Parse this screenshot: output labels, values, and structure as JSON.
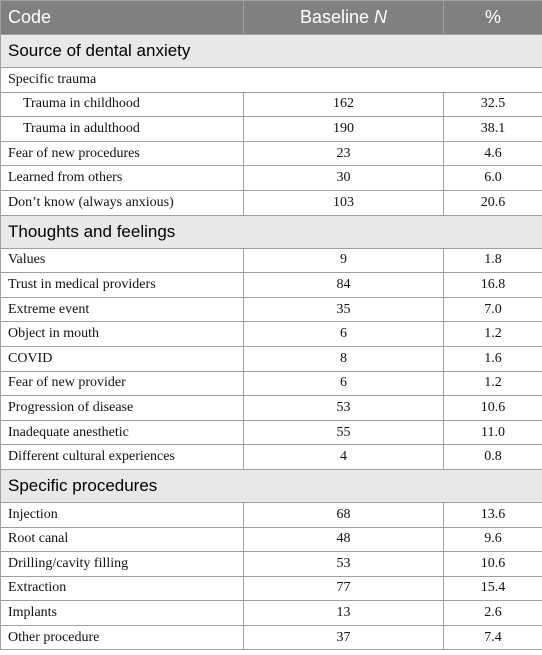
{
  "table": {
    "header": [
      "Code",
      {
        "text": "Baseline",
        "italic": "N"
      },
      "%"
    ],
    "sections": [
      {
        "title": "Source of dental anxiety",
        "rows": [
          {
            "cells": [
              "Specific trauma"
            ]
          },
          {
            "cells": [
              "Trauma in childhood",
              "162",
              "32.5"
            ],
            "indent": true
          },
          {
            "cells": [
              "Trauma in adulthood",
              "190",
              "38.1"
            ],
            "indent": true
          },
          {
            "cells": [
              "Fear of new procedures",
              "23",
              "4.6"
            ]
          },
          {
            "cells": [
              "Learned from others",
              "30",
              "6.0"
            ]
          },
          {
            "cells": [
              "Don’t know (always anxious)",
              "103",
              "20.6"
            ]
          }
        ]
      },
      {
        "title": "Thoughts and feelings",
        "rows": [
          {
            "cells": [
              "Values",
              "9",
              "1.8"
            ]
          },
          {
            "cells": [
              "Trust in medical providers",
              "84",
              "16.8"
            ]
          },
          {
            "cells": [
              "Extreme event",
              "35",
              "7.0"
            ]
          },
          {
            "cells": [
              "Object in mouth",
              "6",
              "1.2"
            ]
          },
          {
            "cells": [
              "COVID",
              "8",
              "1.6"
            ]
          },
          {
            "cells": [
              "Fear of new provider",
              "6",
              "1.2"
            ]
          },
          {
            "cells": [
              "Progression of disease",
              "53",
              "10.6"
            ]
          },
          {
            "cells": [
              "Inadequate anesthetic",
              "55",
              "11.0"
            ]
          },
          {
            "cells": [
              "Different cultural experiences",
              "4",
              "0.8"
            ]
          }
        ]
      },
      {
        "title": "Specific procedures",
        "rows": [
          {
            "cells": [
              "Injection",
              "68",
              "13.6"
            ]
          },
          {
            "cells": [
              "Root canal",
              "48",
              "9.6"
            ]
          },
          {
            "cells": [
              "Drilling/cavity filling",
              "53",
              "10.6"
            ]
          },
          {
            "cells": [
              "Extraction",
              "77",
              "15.4"
            ]
          },
          {
            "cells": [
              "Implants",
              "13",
              "2.6"
            ]
          },
          {
            "cells": [
              "Other procedure",
              "37",
              "7.4"
            ]
          }
        ]
      }
    ]
  }
}
